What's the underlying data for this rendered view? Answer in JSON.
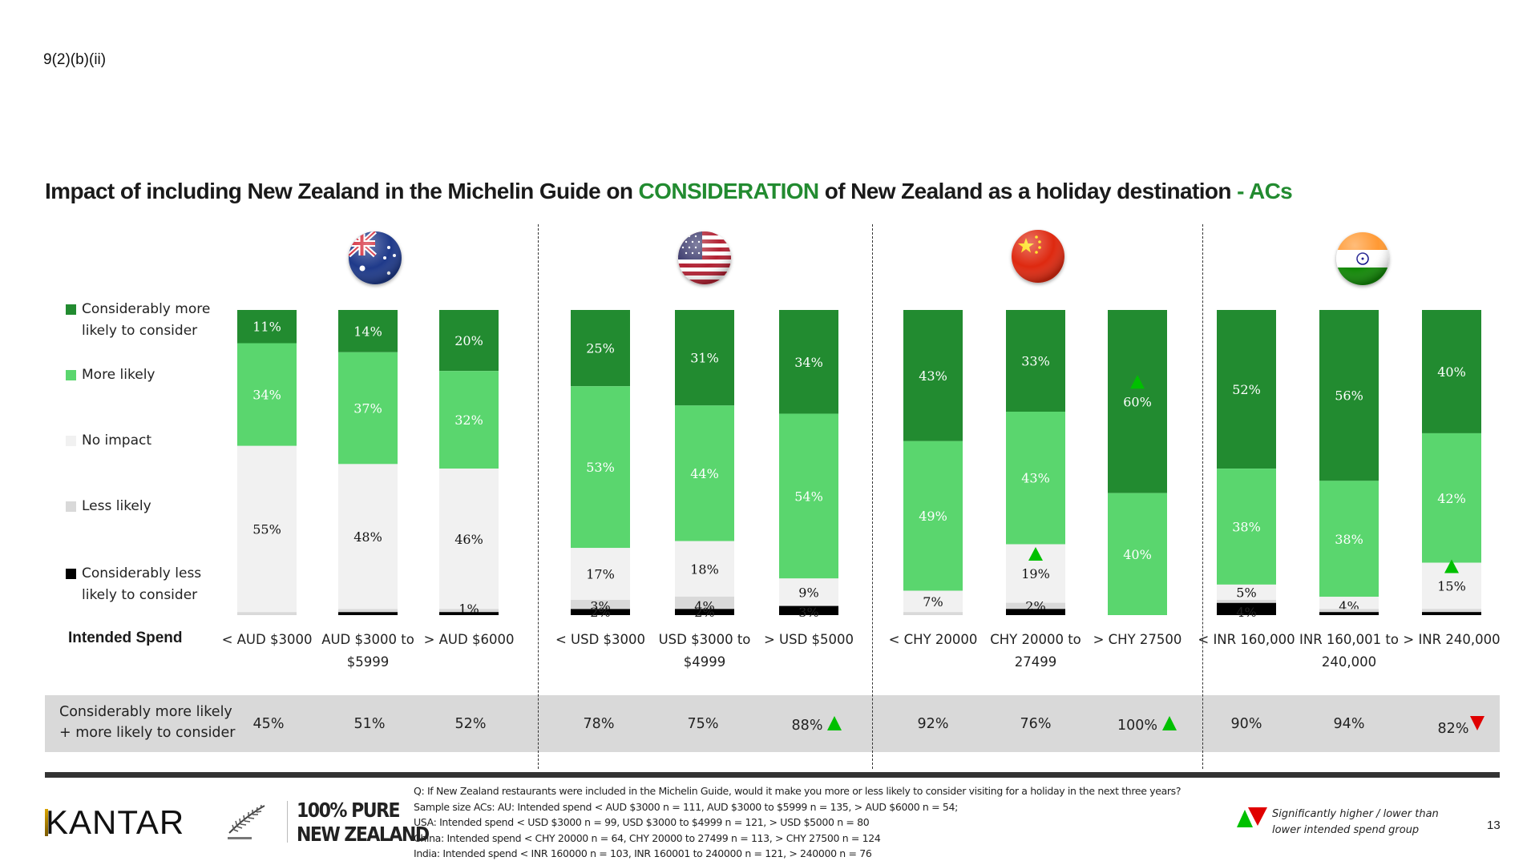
{
  "ref_code": "9(2)(b)(ii)",
  "title": {
    "part1": "Impact of including New Zealand in the Michelin Guide on ",
    "highlight1": "CONSIDERATION",
    "part2": " of New Zealand as a holiday destination ",
    "highlight2": "- ACs"
  },
  "colors": {
    "considerably_more": "#228B30",
    "more_likely": "#5AD66E",
    "no_impact": "#F1F1F1",
    "less_likely": "#D9D9D9",
    "considerably_less": "#000000",
    "sig_higher": "#00C000",
    "sig_lower": "#E00000",
    "title_highlight": "#228B30"
  },
  "legend": [
    {
      "key": "considerably_more",
      "label": "Considerably more likely to consider"
    },
    {
      "key": "more_likely",
      "label": "More likely"
    },
    {
      "key": "no_impact",
      "label": "No impact"
    },
    {
      "key": "less_likely",
      "label": "Less likely"
    },
    {
      "key": "considerably_less",
      "label": "Considerably less likely to consider"
    }
  ],
  "countries": [
    {
      "name": "Australia",
      "flag_icon": "australia-flag-icon"
    },
    {
      "name": "USA",
      "flag_icon": "usa-flag-icon"
    },
    {
      "name": "China",
      "flag_icon": "china-flag-icon"
    },
    {
      "name": "India",
      "flag_icon": "india-flag-icon"
    }
  ],
  "intended_spend_label": "Intended Spend",
  "summary": {
    "label_line1": "Considerably more likely",
    "label_line2": "+ more likely to consider"
  },
  "chart_data": {
    "type": "bar",
    "stacked": true,
    "orientation": "vertical",
    "title": "Impact of including New Zealand in the Michelin Guide on CONSIDERATION of New Zealand as a holiday destination - ACs",
    "xlabel": "Intended Spend",
    "ylabel": "",
    "ylim": [
      0,
      100
    ],
    "grid": false,
    "legend_position": "left",
    "groups": [
      "Australia",
      "Australia",
      "Australia",
      "USA",
      "USA",
      "USA",
      "China",
      "China",
      "China",
      "India",
      "India",
      "India"
    ],
    "categories": [
      "< AUD $3000",
      "AUD $3000 to $5999",
      "> AUD $6000",
      "< USD $3000",
      "USD $3000 to $4999",
      "> USD $5000",
      "< CHY 20000",
      "CHY 20000 to 27499",
      "> CHY 27500",
      "< INR 160,000",
      "INR 160,001 to 240,000",
      "> INR 240,000"
    ],
    "series": [
      {
        "name": "Considerably more likely to consider",
        "key": "considerably_more",
        "values": [
          11,
          14,
          20,
          25,
          31,
          34,
          43,
          33,
          60,
          52,
          56,
          40
        ]
      },
      {
        "name": "More likely",
        "key": "more_likely",
        "values": [
          34,
          37,
          32,
          53,
          44,
          54,
          49,
          43,
          40,
          38,
          38,
          42
        ]
      },
      {
        "name": "No impact",
        "key": "no_impact",
        "values": [
          55,
          48,
          46,
          17,
          18,
          9,
          7,
          19,
          0,
          5,
          4,
          15
        ]
      },
      {
        "name": "Less likely",
        "key": "less_likely",
        "values": [
          1,
          1,
          1,
          3,
          4,
          0,
          1,
          2,
          0,
          1,
          1,
          1
        ]
      },
      {
        "name": "Considerably less likely to consider",
        "key": "considerably_less",
        "values": [
          0,
          1,
          1,
          2,
          2,
          3,
          0,
          2,
          0,
          4,
          1,
          1
        ]
      }
    ],
    "data_labels": [
      [
        "11%",
        "34%",
        "55%",
        "",
        ""
      ],
      [
        "14%",
        "37%",
        "48%",
        "",
        ""
      ],
      [
        "20%",
        "32%",
        "46%",
        "1%",
        ""
      ],
      [
        "25%",
        "53%",
        "17%",
        "3%",
        "2%"
      ],
      [
        "31%",
        "44%",
        "18%",
        "4%",
        "2%"
      ],
      [
        "34%",
        "54%",
        "9%",
        "",
        "3%"
      ],
      [
        "43%",
        "49%",
        "7%",
        "",
        ""
      ],
      [
        "33%",
        "43%",
        "19%",
        "2%",
        ""
      ],
      [
        "60%",
        "40%",
        "",
        "",
        ""
      ],
      [
        "52%",
        "38%",
        "5%",
        "",
        "4%"
      ],
      [
        "56%",
        "38%",
        "4%",
        "",
        ""
      ],
      [
        "40%",
        "42%",
        "15%",
        "",
        ""
      ]
    ],
    "significance_markers": [
      {
        "category": "> CHY 27500",
        "series": "Considerably more likely to consider",
        "direction": "higher"
      },
      {
        "category": "CHY 20000 to 27499",
        "series": "No impact",
        "direction": "higher"
      },
      {
        "category": "> INR 240,000",
        "series": "No impact",
        "direction": "higher"
      }
    ],
    "net_row": {
      "label": "Considerably more likely + more likely to consider",
      "values": [
        "45%",
        "51%",
        "52%",
        "78%",
        "75%",
        "88%",
        "92%",
        "76%",
        "100%",
        "90%",
        "94%",
        "82%"
      ],
      "significance": [
        "",
        "",
        "",
        "",
        "",
        "higher",
        "",
        "",
        "higher",
        "",
        "",
        "lower"
      ]
    }
  },
  "footer": {
    "brand": "KANTAR",
    "nz_logo_line1": "100% PURE",
    "nz_logo_line2": "NEW ZEALAND",
    "question": "Q: If  New Zealand restaurants were included in the Michelin Guide, would it make you more or less likely to consider visiting  for a holiday in the next three years?",
    "sample_au": "Sample size ACs: AU: Intended spend < AUD $3000 n = 111, AUD $3000 to $5999 n = 135, > AUD $6000 n = 54;",
    "sample_usa": "USA: Intended spend < USD $3000 n = 99, USD $3000 to $4999 n = 121, > USD $5000 n = 80",
    "sample_china": "China: Intended spend < CHY 20000 n = 64, CHY 20000 to 27499 n = 113, > CHY 27500 n = 124",
    "sample_india": "India: Intended spend < INR 160000 n = 103, INR 160001 to 240000 n = 121, > 240000 n = 76",
    "sig_legend_line1": "Significantly higher / lower than",
    "sig_legend_line2": "lower intended spend group",
    "page_number": "13"
  }
}
